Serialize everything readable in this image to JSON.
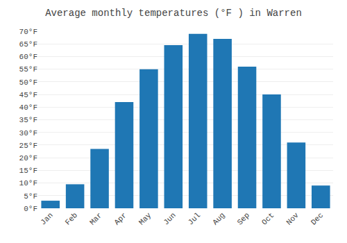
{
  "chart_data": {
    "type": "bar",
    "title": "Average monthly temperatures (°F ) in Warren",
    "categories": [
      "Jan",
      "Feb",
      "Mar",
      "Apr",
      "May",
      "Jun",
      "Jul",
      "Aug",
      "Sep",
      "Oct",
      "Nov",
      "Dec"
    ],
    "values": [
      3,
      9.5,
      23.5,
      42,
      55,
      64.5,
      69,
      67,
      56,
      45,
      26,
      9
    ],
    "ylim": [
      0,
      70
    ],
    "yticks": [
      {
        "value": 0,
        "label": "0°F"
      },
      {
        "value": 5,
        "label": "5°F"
      },
      {
        "value": 10,
        "label": "10°F"
      },
      {
        "value": 15,
        "label": "15°F"
      },
      {
        "value": 20,
        "label": "20°F"
      },
      {
        "value": 25,
        "label": "25°F"
      },
      {
        "value": 30,
        "label": "30°F"
      },
      {
        "value": 35,
        "label": "35°F"
      },
      {
        "value": 40,
        "label": "40°F"
      },
      {
        "value": 45,
        "label": "45°F"
      },
      {
        "value": 50,
        "label": "50°F"
      },
      {
        "value": 55,
        "label": "55°F"
      },
      {
        "value": 60,
        "label": "60°F"
      },
      {
        "value": 65,
        "label": "65°F"
      },
      {
        "value": 70,
        "label": "70°F"
      }
    ],
    "grid": true
  }
}
